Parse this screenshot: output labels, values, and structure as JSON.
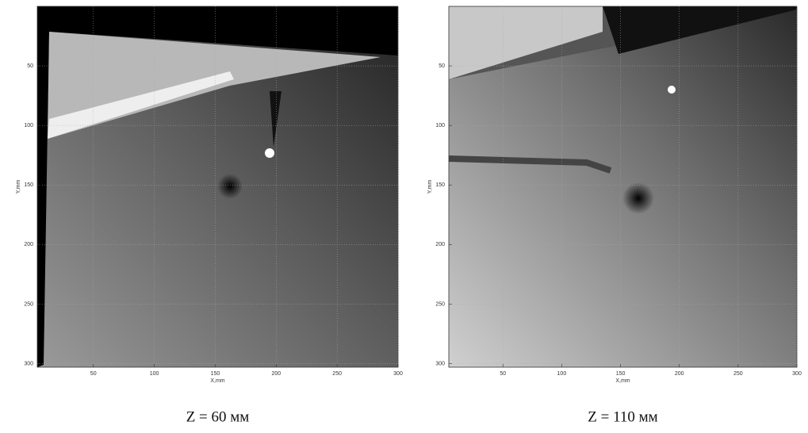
{
  "chart_data": [
    {
      "type": "image",
      "xlabel": "X,mm",
      "ylabel": "Y,mm",
      "caption": "Z = 60 мм",
      "xlim": [
        4,
        300
      ],
      "ylim": [
        0,
        303
      ],
      "xticks": [
        50,
        100,
        150,
        200,
        250,
        300
      ],
      "yticks": [
        50,
        100,
        150,
        200,
        250,
        300
      ],
      "grid": true
    },
    {
      "type": "image",
      "xlabel": "X,mm",
      "ylabel": "Y,mm",
      "caption": "Z = 110 мм",
      "xlim": [
        4,
        300
      ],
      "ylim": [
        0,
        303
      ],
      "xticks": [
        50,
        100,
        150,
        200,
        250,
        300
      ],
      "yticks": [
        50,
        100,
        150,
        200,
        250,
        300
      ],
      "grid": true
    }
  ]
}
